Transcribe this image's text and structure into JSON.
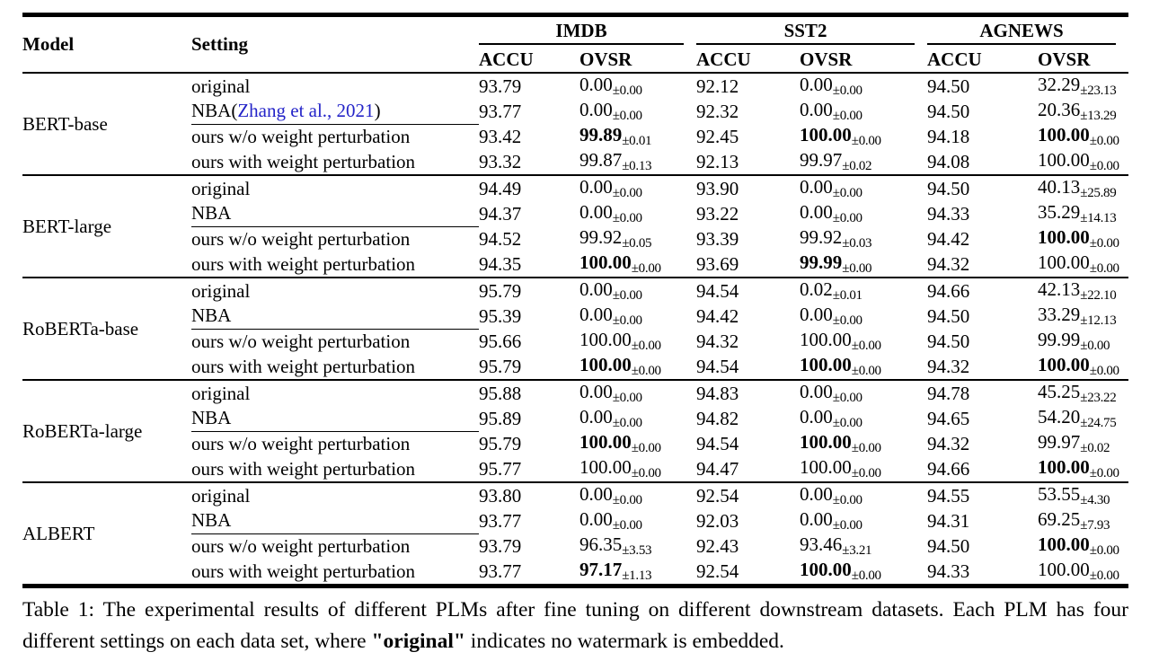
{
  "page": {
    "background": "#ffffff",
    "link_color": "#2424c8"
  },
  "table": {
    "headers": {
      "model": "Model",
      "setting": "Setting",
      "accu": "ACCU",
      "ovsr": "OVSR",
      "datasets": [
        "IMDB",
        "SST2",
        "AGNEWS"
      ]
    },
    "groups": [
      {
        "model": "BERT-base",
        "rows": [
          {
            "setting": "original",
            "values": [
              {
                "accu": "93.79",
                "ovsr": "0.00",
                "err": "±0.00",
                "bold": false
              },
              {
                "accu": "92.12",
                "ovsr": "0.00",
                "err": "±0.00",
                "bold": false
              },
              {
                "accu": "94.50",
                "ovsr": "32.29",
                "err": "±23.13",
                "bold": false
              }
            ]
          },
          {
            "setting": "NBA(",
            "link": "Zhang et al., 2021",
            "suffix": ")",
            "values": [
              {
                "accu": "93.77",
                "ovsr": "0.00",
                "err": "±0.00",
                "bold": false
              },
              {
                "accu": "92.32",
                "ovsr": "0.00",
                "err": "±0.00",
                "bold": false
              },
              {
                "accu": "94.50",
                "ovsr": "20.36",
                "err": "±13.29",
                "bold": false
              }
            ]
          },
          {
            "setting": "ours w/o weight perturbation",
            "values": [
              {
                "accu": "93.42",
                "ovsr": "99.89",
                "err": "±0.01",
                "bold": true
              },
              {
                "accu": "92.45",
                "ovsr": "100.00",
                "err": "±0.00",
                "bold": true
              },
              {
                "accu": "94.18",
                "ovsr": "100.00",
                "err": "±0.00",
                "bold": true
              }
            ]
          },
          {
            "setting": "ours with weight perturbation",
            "values": [
              {
                "accu": "93.32",
                "ovsr": "99.87",
                "err": "±0.13",
                "bold": false
              },
              {
                "accu": "92.13",
                "ovsr": "99.97",
                "err": "±0.02",
                "bold": false
              },
              {
                "accu": "94.08",
                "ovsr": "100.00",
                "err": "±0.00",
                "bold": false
              }
            ]
          }
        ]
      },
      {
        "model": "BERT-large",
        "rows": [
          {
            "setting": "original",
            "values": [
              {
                "accu": "94.49",
                "ovsr": "0.00",
                "err": "±0.00",
                "bold": false
              },
              {
                "accu": "93.90",
                "ovsr": "0.00",
                "err": "±0.00",
                "bold": false
              },
              {
                "accu": "94.50",
                "ovsr": "40.13",
                "err": "±25.89",
                "bold": false
              }
            ]
          },
          {
            "setting": "NBA",
            "values": [
              {
                "accu": "94.37",
                "ovsr": "0.00",
                "err": "±0.00",
                "bold": false
              },
              {
                "accu": "93.22",
                "ovsr": "0.00",
                "err": "±0.00",
                "bold": false
              },
              {
                "accu": "94.33",
                "ovsr": "35.29",
                "err": "±14.13",
                "bold": false
              }
            ]
          },
          {
            "setting": "ours w/o weight perturbation",
            "values": [
              {
                "accu": "94.52",
                "ovsr": "99.92",
                "err": "±0.05",
                "bold": false
              },
              {
                "accu": "93.39",
                "ovsr": "99.92",
                "err": "±0.03",
                "bold": false
              },
              {
                "accu": "94.42",
                "ovsr": "100.00",
                "err": "±0.00",
                "bold": true
              }
            ]
          },
          {
            "setting": "ours with weight perturbation",
            "values": [
              {
                "accu": "94.35",
                "ovsr": "100.00",
                "err": "±0.00",
                "bold": true
              },
              {
                "accu": "93.69",
                "ovsr": "99.99",
                "err": "±0.00",
                "bold": true
              },
              {
                "accu": "94.32",
                "ovsr": "100.00",
                "err": "±0.00",
                "bold": false
              }
            ]
          }
        ]
      },
      {
        "model": "RoBERTa-base",
        "rows": [
          {
            "setting": "original",
            "values": [
              {
                "accu": "95.79",
                "ovsr": "0.00",
                "err": "±0.00",
                "bold": false
              },
              {
                "accu": "94.54",
                "ovsr": "0.02",
                "err": "±0.01",
                "bold": false
              },
              {
                "accu": "94.66",
                "ovsr": "42.13",
                "err": "±22.10",
                "bold": false
              }
            ]
          },
          {
            "setting": "NBA",
            "values": [
              {
                "accu": "95.39",
                "ovsr": "0.00",
                "err": "±0.00",
                "bold": false
              },
              {
                "accu": "94.42",
                "ovsr": "0.00",
                "err": "±0.00",
                "bold": false
              },
              {
                "accu": "94.50",
                "ovsr": "33.29",
                "err": "±12.13",
                "bold": false
              }
            ]
          },
          {
            "setting": "ours w/o weight perturbation",
            "values": [
              {
                "accu": "95.66",
                "ovsr": "100.00",
                "err": "±0.00",
                "bold": false
              },
              {
                "accu": "94.32",
                "ovsr": "100.00",
                "err": "±0.00",
                "bold": false
              },
              {
                "accu": "94.50",
                "ovsr": "99.99",
                "err": "±0.00",
                "bold": false
              }
            ]
          },
          {
            "setting": "ours with weight perturbation",
            "values": [
              {
                "accu": "95.79",
                "ovsr": "100.00",
                "err": "±0.00",
                "bold": true
              },
              {
                "accu": "94.54",
                "ovsr": "100.00",
                "err": "±0.00",
                "bold": true
              },
              {
                "accu": "94.32",
                "ovsr": "100.00",
                "err": "±0.00",
                "bold": true
              }
            ]
          }
        ]
      },
      {
        "model": "RoBERTa-large",
        "rows": [
          {
            "setting": "original",
            "values": [
              {
                "accu": "95.88",
                "ovsr": "0.00",
                "err": "±0.00",
                "bold": false
              },
              {
                "accu": "94.83",
                "ovsr": "0.00",
                "err": "±0.00",
                "bold": false
              },
              {
                "accu": "94.78",
                "ovsr": "45.25",
                "err": "±23.22",
                "bold": false
              }
            ]
          },
          {
            "setting": "NBA",
            "values": [
              {
                "accu": "95.89",
                "ovsr": "0.00",
                "err": "±0.00",
                "bold": false
              },
              {
                "accu": "94.82",
                "ovsr": "0.00",
                "err": "±0.00",
                "bold": false
              },
              {
                "accu": "94.65",
                "ovsr": "54.20",
                "err": "±24.75",
                "bold": false
              }
            ]
          },
          {
            "setting": "ours w/o weight perturbation",
            "values": [
              {
                "accu": "95.79",
                "ovsr": "100.00",
                "err": "±0.00",
                "bold": true
              },
              {
                "accu": "94.54",
                "ovsr": "100.00",
                "err": "±0.00",
                "bold": true
              },
              {
                "accu": "94.32",
                "ovsr": "99.97",
                "err": "±0.02",
                "bold": false
              }
            ]
          },
          {
            "setting": "ours with weight perturbation",
            "values": [
              {
                "accu": "95.77",
                "ovsr": "100.00",
                "err": "±0.00",
                "bold": false
              },
              {
                "accu": "94.47",
                "ovsr": "100.00",
                "err": "±0.00",
                "bold": false
              },
              {
                "accu": "94.66",
                "ovsr": "100.00",
                "err": "±0.00",
                "bold": true
              }
            ]
          }
        ]
      },
      {
        "model": "ALBERT",
        "rows": [
          {
            "setting": "original",
            "values": [
              {
                "accu": "93.80",
                "ovsr": "0.00",
                "err": "±0.00",
                "bold": false
              },
              {
                "accu": "92.54",
                "ovsr": "0.00",
                "err": "±0.00",
                "bold": false
              },
              {
                "accu": "94.55",
                "ovsr": "53.55",
                "err": "±4.30",
                "bold": false
              }
            ]
          },
          {
            "setting": "NBA",
            "values": [
              {
                "accu": "93.77",
                "ovsr": "0.00",
                "err": "±0.00",
                "bold": false
              },
              {
                "accu": "92.03",
                "ovsr": "0.00",
                "err": "±0.00",
                "bold": false
              },
              {
                "accu": "94.31",
                "ovsr": "69.25",
                "err": "±7.93",
                "bold": false
              }
            ]
          },
          {
            "setting": "ours w/o weight perturbation",
            "values": [
              {
                "accu": "93.79",
                "ovsr": "96.35",
                "err": "±3.53",
                "bold": false
              },
              {
                "accu": "92.43",
                "ovsr": "93.46",
                "err": "±3.21",
                "bold": false
              },
              {
                "accu": "94.50",
                "ovsr": "100.00",
                "err": "±0.00",
                "bold": true
              }
            ]
          },
          {
            "setting": "ours with weight perturbation",
            "values": [
              {
                "accu": "93.77",
                "ovsr": "97.17",
                "err": "±1.13",
                "bold": true
              },
              {
                "accu": "92.54",
                "ovsr": "100.00",
                "err": "±0.00",
                "bold": true
              },
              {
                "accu": "94.33",
                "ovsr": "100.00",
                "err": "±0.00",
                "bold": false
              }
            ]
          }
        ]
      }
    ]
  },
  "caption": {
    "before": "Table 1: The experimental results of different PLMs after fine tuning on different downstream datasets. Each PLM has four different settings on each data set, where ",
    "bold": "\"original\"",
    "after": " indicates no watermark is embedded."
  }
}
